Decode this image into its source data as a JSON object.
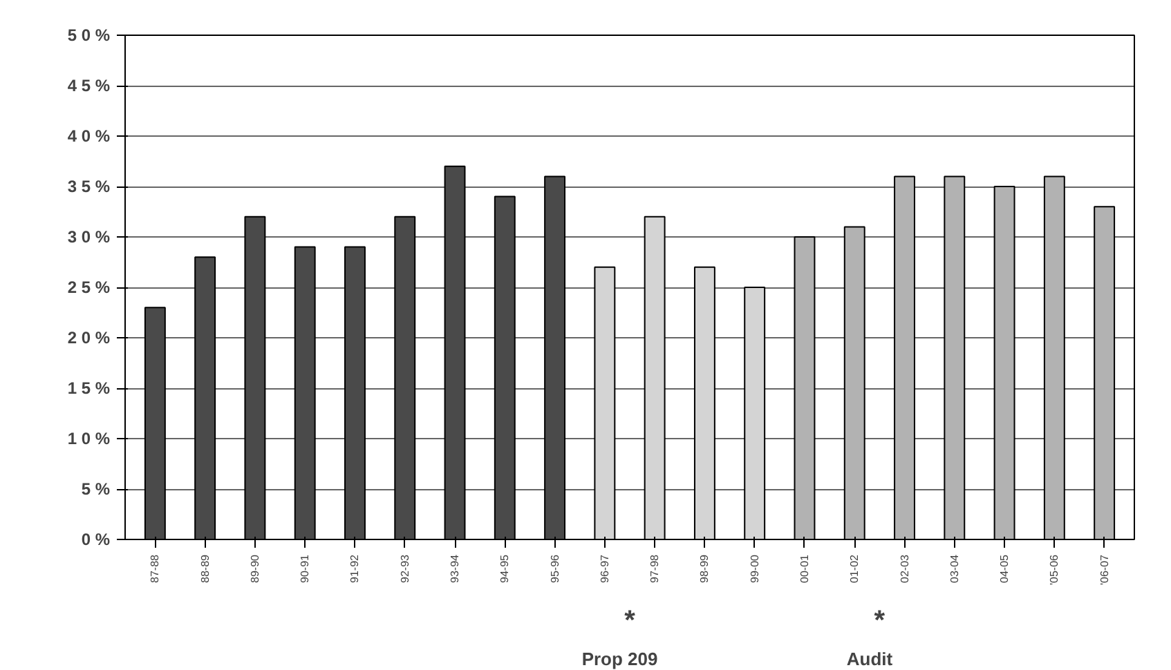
{
  "chart_data": {
    "type": "bar",
    "categories": [
      "87-88",
      "88-89",
      "89-90",
      "90-91",
      "91-92",
      "92-93",
      "93-94",
      "94-95",
      "95-96",
      "96-97",
      "97-98",
      "98-99",
      "99-00",
      "00-01",
      "01-02",
      "02-03",
      "03-04",
      "04-05",
      "'05-06",
      "'06-07"
    ],
    "values": [
      23,
      28,
      32,
      29,
      29,
      32,
      37,
      34,
      36,
      27,
      32,
      27,
      25,
      30,
      31,
      36,
      36,
      35,
      36,
      33
    ],
    "colors": [
      "#4a4a4a",
      "#4a4a4a",
      "#4a4a4a",
      "#4a4a4a",
      "#4a4a4a",
      "#4a4a4a",
      "#4a4a4a",
      "#4a4a4a",
      "#4a4a4a",
      "#d4d4d4",
      "#d4d4d4",
      "#d4d4d4",
      "#d4d4d4",
      "#b2b2b2",
      "#b2b2b2",
      "#b2b2b2",
      "#b2b2b2",
      "#b2b2b2",
      "#b2b2b2",
      "#b2b2b2"
    ],
    "ylim": [
      0,
      50
    ],
    "yticks": [
      {
        "value": 0,
        "label": "0 %"
      },
      {
        "value": 5,
        "label": "5 %"
      },
      {
        "value": 10,
        "label": "1 0 %"
      },
      {
        "value": 15,
        "label": "1 5 %"
      },
      {
        "value": 20,
        "label": "2 0 %"
      },
      {
        "value": 25,
        "label": "2 5 %"
      },
      {
        "value": 30,
        "label": "3 0 %"
      },
      {
        "value": 35,
        "label": "3 5 %"
      },
      {
        "value": 40,
        "label": "4 0 %"
      },
      {
        "value": 45,
        "label": "4 5 %"
      },
      {
        "value": 50,
        "label": "5 0 %"
      }
    ],
    "grid": "y",
    "annotations": [
      "*",
      "Prop 209",
      "*",
      "Audit"
    ]
  }
}
